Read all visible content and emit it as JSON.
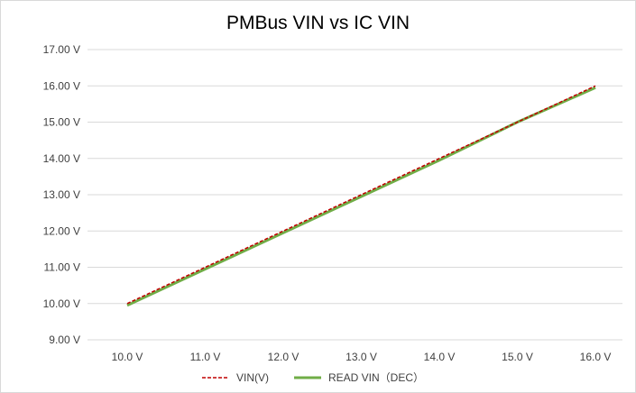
{
  "chart_data": {
    "type": "line",
    "title": "PMBus VIN vs IC VIN",
    "categories": [
      "10.0 V",
      "11.0 V",
      "12.0 V",
      "13.0 V",
      "14.0 V",
      "15.0 V",
      "16.0 V"
    ],
    "x": [
      10,
      11,
      12,
      13,
      14,
      15,
      16
    ],
    "ylim": [
      9,
      17
    ],
    "yticks": [
      9,
      10,
      11,
      12,
      13,
      14,
      15,
      16,
      17
    ],
    "ytick_labels": [
      "9.00 V",
      "10.00 V",
      "11.00 V",
      "12.00 V",
      "13.00 V",
      "14.00 V",
      "15.00 V",
      "16.00 V",
      "17.00 V"
    ],
    "grid": true,
    "legend_position": "bottom",
    "series": [
      {
        "name": "VIN(V)",
        "values": [
          10.0,
          11.0,
          12.0,
          13.0,
          14.0,
          15.0,
          16.0
        ],
        "color": "#c00000",
        "style": "dashed"
      },
      {
        "name": "READ VIN（DEC）",
        "values": [
          9.95,
          10.95,
          11.95,
          12.95,
          13.95,
          15.0,
          15.95
        ],
        "color": "#70ad47",
        "style": "solid"
      }
    ]
  }
}
